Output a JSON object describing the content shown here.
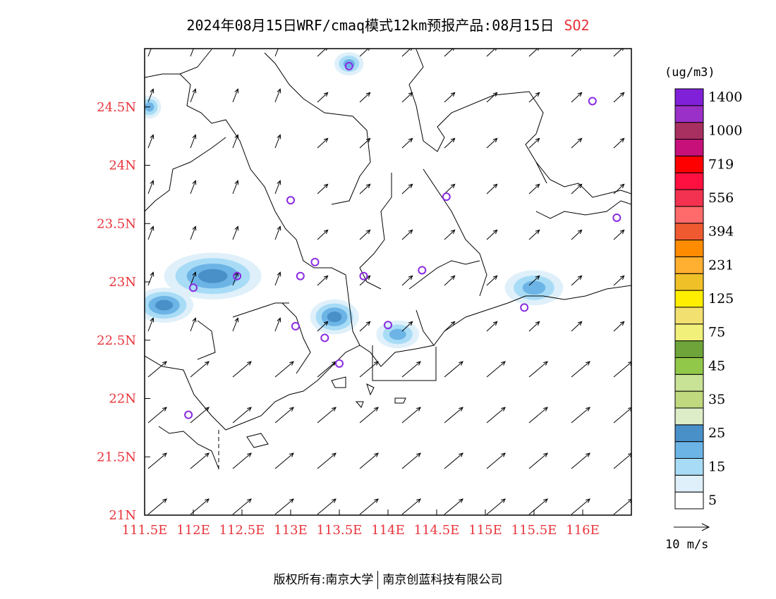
{
  "title": {
    "text": "2024年08月15日WRF/cmaq模式12km预报产品:08月15日",
    "pollutant": "SO2"
  },
  "footer": {
    "copyright": "版权所有:南京大学",
    "partner": "南京创蓝科技有限公司"
  },
  "map": {
    "lon_range": [
      111.5,
      116.5
    ],
    "lat_range": [
      21.0,
      25.0
    ],
    "x_ticks": [
      "111.5E",
      "112E",
      "112.5E",
      "113E",
      "113.5E",
      "114E",
      "114.5E",
      "115E",
      "115.5E",
      "116E"
    ],
    "x_tick_values": [
      111.5,
      112,
      112.5,
      113,
      113.5,
      114,
      114.5,
      115,
      115.5,
      116
    ],
    "y_ticks": [
      "21N",
      "21.5N",
      "22N",
      "22.5N",
      "23N",
      "23.5N",
      "24N",
      "24.5N"
    ],
    "y_tick_values": [
      21,
      21.5,
      22,
      22.5,
      23,
      23.5,
      24,
      24.5
    ],
    "axis_color": "#e8333a"
  },
  "legend": {
    "unit": "(ug/m3)",
    "colors": [
      "#ffffff",
      "#dff0fa",
      "#a8dcf6",
      "#6db4e6",
      "#4a90c8",
      "#dcedc8",
      "#c0d87e",
      "#c8e296",
      "#92c84a",
      "#6ea43a",
      "#f0f07a",
      "#f2e070",
      "#ffee00",
      "#f0c028",
      "#ffb030",
      "#ff8c00",
      "#f05a30",
      "#ff6a6a",
      "#f23250",
      "#ff1040",
      "#ff0000",
      "#c8107a",
      "#a83060",
      "#9a30c8",
      "#8020d8"
    ],
    "labels": [
      "5",
      "15",
      "25",
      "35",
      "45",
      "75",
      "125",
      "231",
      "394",
      "556",
      "719",
      "1000",
      "1400"
    ],
    "wind_scale": "10 m/s"
  },
  "stations": [
    [
      113.6,
      24.85
    ],
    [
      116.1,
      24.55
    ],
    [
      114.6,
      23.73
    ],
    [
      116.35,
      23.55
    ],
    [
      113.0,
      23.7
    ],
    [
      112.45,
      23.05
    ],
    [
      113.25,
      23.17
    ],
    [
      113.1,
      23.05
    ],
    [
      113.75,
      23.05
    ],
    [
      114.35,
      23.1
    ],
    [
      112.0,
      22.95
    ],
    [
      115.4,
      22.78
    ],
    [
      113.05,
      22.62
    ],
    [
      113.35,
      22.52
    ],
    [
      114.0,
      22.63
    ],
    [
      113.5,
      22.3
    ],
    [
      111.95,
      21.86
    ]
  ],
  "so2_blobs": [
    {
      "lon": 112.2,
      "lat": 23.05,
      "rx": 0.5,
      "ry": 0.2,
      "level": 3
    },
    {
      "lon": 111.7,
      "lat": 22.8,
      "rx": 0.3,
      "ry": 0.15,
      "level": 3
    },
    {
      "lon": 113.45,
      "lat": 22.7,
      "rx": 0.25,
      "ry": 0.15,
      "level": 3
    },
    {
      "lon": 114.1,
      "lat": 22.55,
      "rx": 0.22,
      "ry": 0.12,
      "level": 2
    },
    {
      "lon": 115.5,
      "lat": 22.95,
      "rx": 0.3,
      "ry": 0.15,
      "level": 2
    },
    {
      "lon": 113.6,
      "lat": 24.87,
      "rx": 0.15,
      "ry": 0.1,
      "level": 2
    },
    {
      "lon": 111.55,
      "lat": 24.5,
      "rx": 0.12,
      "ry": 0.1,
      "level": 2
    }
  ]
}
